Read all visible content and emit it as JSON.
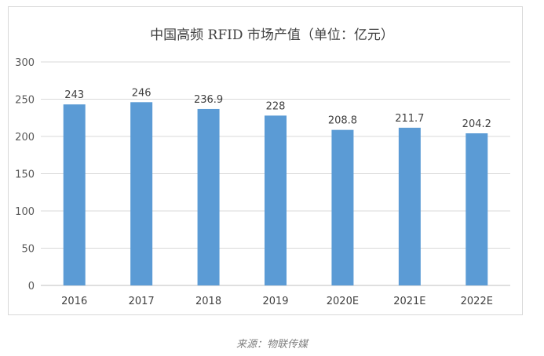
{
  "chart_data": {
    "type": "bar",
    "title": "中国高频 RFID 市场产值（单位：亿元）",
    "categories": [
      "2016",
      "2017",
      "2018",
      "2019",
      "2020E",
      "2021E",
      "2022E"
    ],
    "values": [
      243,
      246,
      236.9,
      228,
      208.8,
      211.7,
      204.2
    ],
    "value_labels": [
      "243",
      "246",
      "236.9",
      "228",
      "208.8",
      "211.7",
      "204.2"
    ],
    "ylim": [
      0,
      300
    ],
    "yticks": [
      0,
      50,
      100,
      150,
      200,
      250,
      300
    ],
    "grid": true,
    "legend": "none",
    "bar_color": "#5b9bd5"
  },
  "watermark": "物联传媒",
  "source": "来源：物联传媒"
}
